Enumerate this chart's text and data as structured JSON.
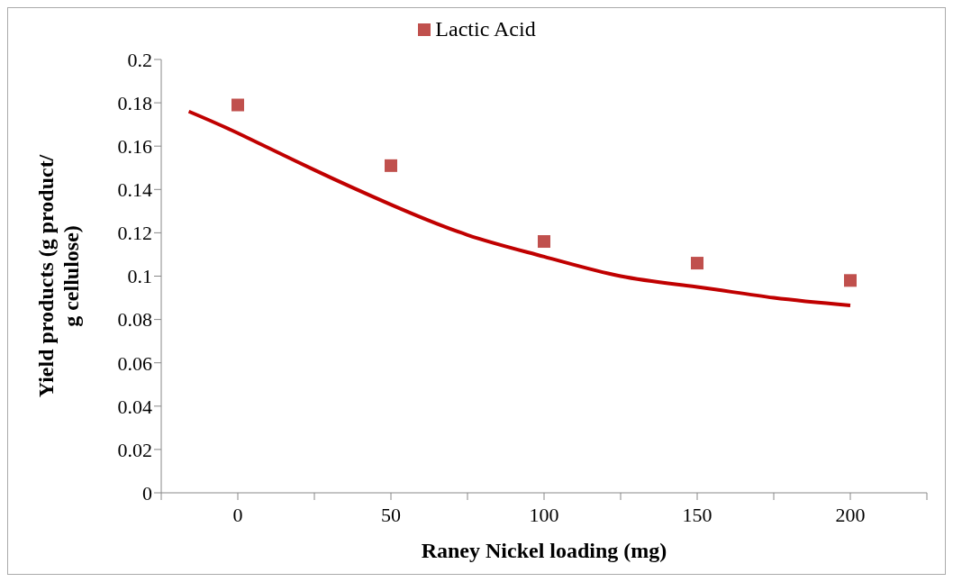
{
  "chart_data": {
    "type": "scatter",
    "xlabel": "Raney Nickel loading (mg)",
    "ylabel": "Yield products (g product/ g cellulose)",
    "x": [
      0,
      50,
      100,
      150,
      200
    ],
    "xlim": [
      -25,
      225
    ],
    "xticks": [
      {
        "value": -25,
        "label": null
      },
      0,
      {
        "value": 25,
        "label": null
      },
      50,
      {
        "value": 75,
        "label": null
      },
      100,
      {
        "value": 125,
        "label": null
      },
      150,
      {
        "value": 175,
        "label": null
      },
      200,
      {
        "value": 225,
        "label": null
      }
    ],
    "ylim": [
      0,
      0.2
    ],
    "yticks": [
      0,
      0.02,
      0.04,
      0.06,
      0.08,
      0.1,
      0.12,
      0.14,
      0.16,
      0.18,
      0.2
    ],
    "grid": false,
    "legend": "top",
    "series": [
      {
        "name": "Lactic Acid",
        "marker": "square",
        "color": "#c0504d",
        "values": [
          0.179,
          0.151,
          0.116,
          0.106,
          0.098
        ]
      },
      {
        "type": "line",
        "marker": "none",
        "line_style": "solid",
        "color": "#c00000",
        "x": [
          -16,
          0,
          25,
          50,
          75,
          100,
          125,
          150,
          175,
          200
        ],
        "values": [
          0.176,
          0.166,
          0.149,
          0.133,
          0.119,
          0.109,
          0.1,
          0.095,
          0.09,
          0.0865
        ]
      }
    ]
  }
}
